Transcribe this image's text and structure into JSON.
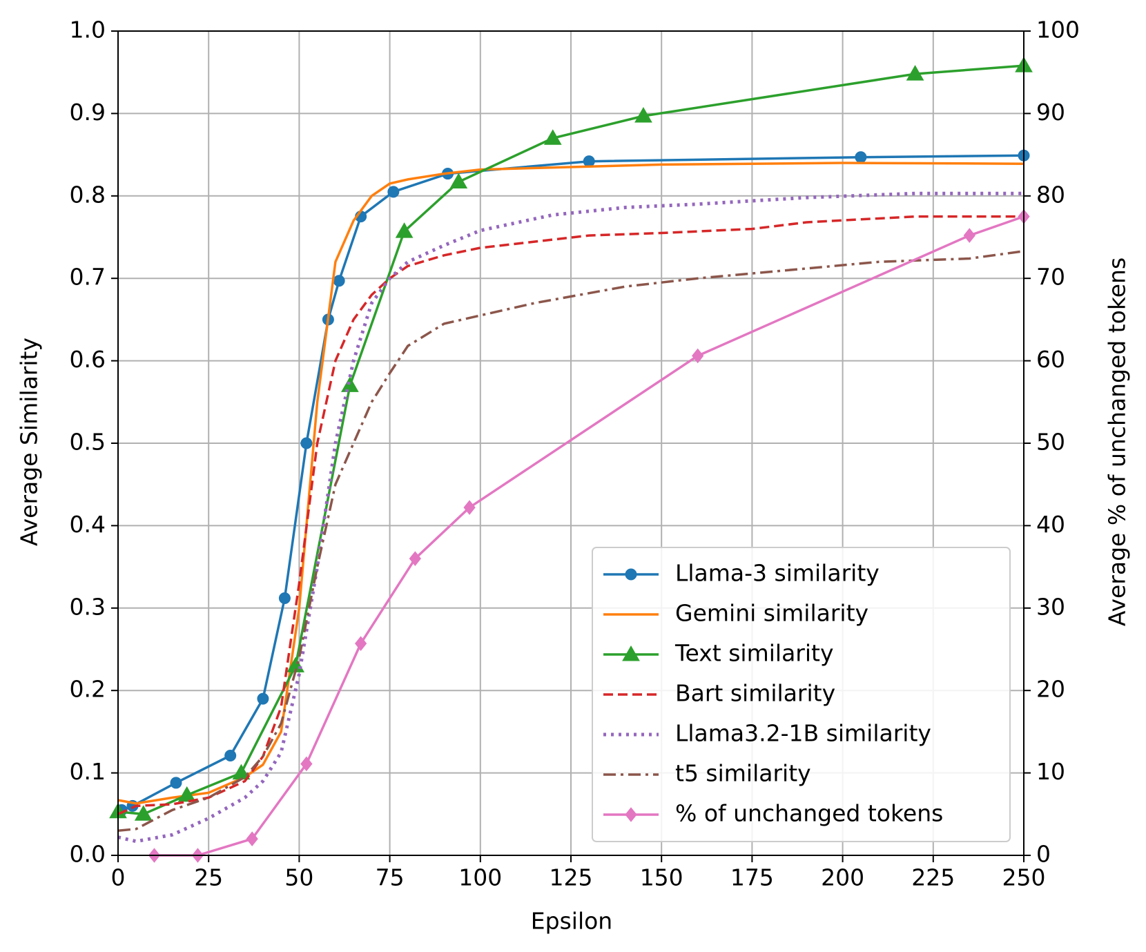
{
  "chart_data": {
    "type": "line",
    "xlabel": "Epsilon",
    "ylabel": "Average Similarity",
    "y2label": "Average % of unchanged tokens",
    "xlim": [
      0,
      250
    ],
    "xticks": [
      0,
      25,
      50,
      75,
      100,
      125,
      150,
      175,
      200,
      225,
      250
    ],
    "ylim": [
      0,
      1
    ],
    "yticks": [
      {
        "value": 0,
        "label": "0.0"
      },
      0.1,
      0.2,
      0.3,
      0.4,
      0.5,
      0.6,
      0.7,
      0.8,
      0.9,
      {
        "value": 1,
        "label": "1.0"
      }
    ],
    "y2lim": [
      0,
      100
    ],
    "y2ticks": [
      0,
      10,
      20,
      30,
      40,
      50,
      60,
      70,
      80,
      90,
      100
    ],
    "grid": true,
    "legend": "lower right",
    "series": [
      {
        "name": "Llama-3 similarity",
        "color": "#1f77b4",
        "marker": "circle",
        "dash": "solid",
        "x": [
          1,
          4,
          16,
          31,
          40,
          46,
          52,
          58,
          61,
          67,
          76,
          91,
          130,
          205,
          250
        ],
        "values": [
          0.055,
          0.06,
          0.088,
          0.121,
          0.19,
          0.312,
          0.5,
          0.65,
          0.697,
          0.775,
          0.805,
          0.827,
          0.842,
          0.847,
          0.849
        ]
      },
      {
        "name": "Gemini similarity",
        "color": "#ff7f0e",
        "marker": "none",
        "dash": "solid",
        "x": [
          0,
          5,
          15,
          25,
          35,
          40,
          45,
          50,
          55,
          60,
          65,
          70,
          75,
          80,
          90,
          100,
          150,
          200,
          250
        ],
        "values": [
          0.067,
          0.063,
          0.07,
          0.076,
          0.095,
          0.11,
          0.15,
          0.3,
          0.55,
          0.72,
          0.77,
          0.8,
          0.815,
          0.82,
          0.827,
          0.832,
          0.838,
          0.84,
          0.839
        ]
      },
      {
        "name": "Text similarity",
        "color": "#2ca02c",
        "marker": "triangle",
        "dash": "solid",
        "x": [
          0,
          7,
          19,
          34,
          49,
          64,
          79,
          94,
          120,
          145,
          220,
          250
        ],
        "values": [
          0.053,
          0.05,
          0.073,
          0.1,
          0.23,
          0.57,
          0.757,
          0.817,
          0.87,
          0.897,
          0.948,
          0.958
        ]
      },
      {
        "name": "Bart similarity",
        "color": "#d62728",
        "marker": "none",
        "dash": "dashed",
        "x": [
          0,
          5,
          15,
          25,
          35,
          40,
          45,
          50,
          55,
          60,
          65,
          70,
          75,
          80,
          90,
          100,
          130,
          150,
          175,
          190,
          220,
          250
        ],
        "values": [
          0.05,
          0.06,
          0.062,
          0.07,
          0.09,
          0.12,
          0.18,
          0.33,
          0.5,
          0.6,
          0.65,
          0.68,
          0.7,
          0.715,
          0.728,
          0.737,
          0.752,
          0.755,
          0.76,
          0.768,
          0.775,
          0.775
        ]
      },
      {
        "name": "Llama3.2-1B similarity",
        "color": "#9467bd",
        "marker": "none",
        "dash": "dotted",
        "x": [
          0,
          5,
          15,
          25,
          35,
          40,
          45,
          50,
          55,
          60,
          65,
          70,
          75,
          80,
          90,
          100,
          120,
          140,
          160,
          190,
          220,
          250
        ],
        "values": [
          0.022,
          0.017,
          0.025,
          0.045,
          0.07,
          0.09,
          0.125,
          0.22,
          0.35,
          0.5,
          0.6,
          0.67,
          0.7,
          0.72,
          0.74,
          0.758,
          0.777,
          0.786,
          0.79,
          0.798,
          0.803,
          0.803
        ]
      },
      {
        "name": "t5 similarity",
        "color": "#8c564b",
        "marker": "none",
        "dash": "dashdot",
        "x": [
          0,
          5,
          15,
          25,
          35,
          40,
          45,
          50,
          55,
          60,
          65,
          70,
          75,
          80,
          90,
          100,
          115,
          140,
          160,
          190,
          210,
          235,
          250
        ],
        "values": [
          0.03,
          0.032,
          0.055,
          0.07,
          0.095,
          0.12,
          0.16,
          0.24,
          0.35,
          0.45,
          0.5,
          0.55,
          0.585,
          0.618,
          0.645,
          0.655,
          0.67,
          0.69,
          0.7,
          0.712,
          0.72,
          0.724,
          0.733
        ]
      },
      {
        "name": "% of unchanged tokens",
        "color": "#e377c2",
        "marker": "diamond",
        "dash": "solid",
        "axis": "y2",
        "x": [
          10,
          22,
          37,
          52,
          67,
          82,
          97,
          160,
          235,
          250
        ],
        "values": [
          0,
          0,
          2,
          11.1,
          25.7,
          36,
          42.2,
          60.6,
          75.2,
          77.5
        ]
      }
    ]
  }
}
